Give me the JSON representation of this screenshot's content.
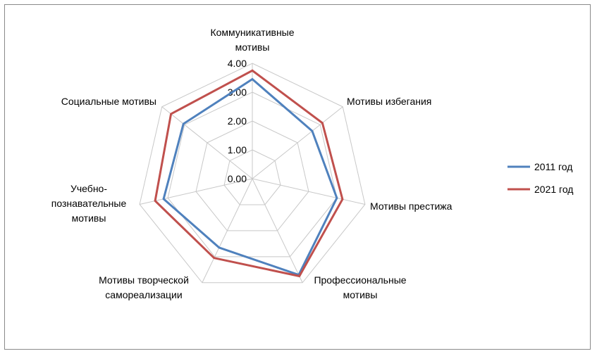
{
  "chart_data": {
    "type": "radar",
    "title": "",
    "categories": [
      "Коммуникативные мотивы",
      "Мотивы избегания",
      "Мотивы престижа",
      "Профессиональные мотивы",
      "Мотивы творческой самореализации",
      "Учебно-познавательные мотивы",
      "Социальные мотивы"
    ],
    "category_label_lines": [
      [
        "Коммуникативные",
        "мотивы"
      ],
      [
        "Мотивы избегания"
      ],
      [
        "Мотивы престижа"
      ],
      [
        "Профессиональные",
        "мотивы"
      ],
      [
        "Мотивы творческой",
        "самореализации"
      ],
      [
        "Учебно-",
        "познавательные",
        "мотивы"
      ],
      [
        "Социальные мотивы"
      ]
    ],
    "ylim": [
      0,
      4
    ],
    "ticks": [
      "0.00",
      "1.00",
      "2.00",
      "3.00",
      "4.00"
    ],
    "gridlines": true,
    "legend_position": "right",
    "series": [
      {
        "name": "2011 год",
        "color": "#4f81bd",
        "values": [
          3.45,
          2.65,
          3.0,
          3.7,
          2.65,
          3.15,
          3.05
        ]
      },
      {
        "name": "2021 год",
        "color": "#c0504d",
        "values": [
          3.75,
          3.1,
          3.2,
          3.75,
          3.05,
          3.45,
          3.6
        ]
      }
    ]
  }
}
